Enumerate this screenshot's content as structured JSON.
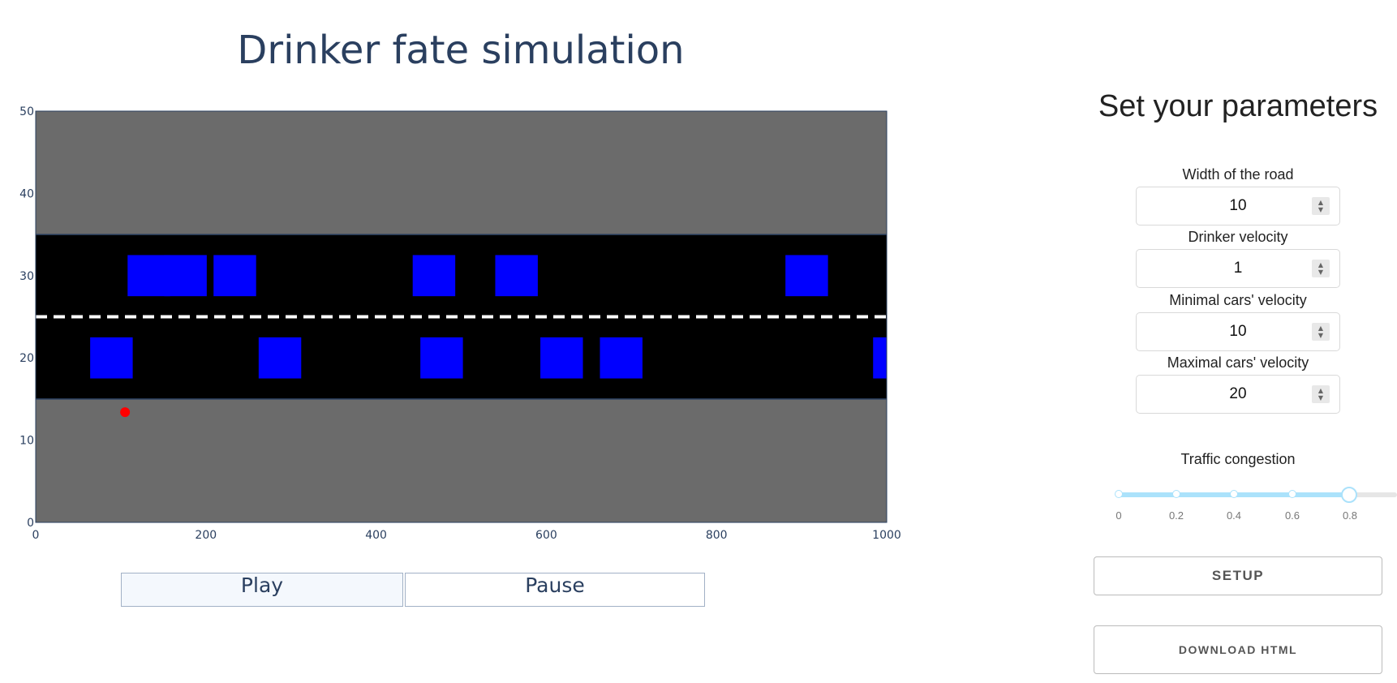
{
  "simulation": {
    "title": "Drinker fate simulation",
    "controls": {
      "play_label": "Play",
      "pause_label": "Pause"
    }
  },
  "colors": {
    "grass": "#6b6b6b",
    "road": "#000000",
    "car": "#0000ff",
    "drinker": "#ff0000",
    "lane_marking": "#ffffff",
    "axis_text": "#2a3f5f"
  },
  "chart_data": {
    "type": "scatter",
    "xlim": [
      0,
      1000
    ],
    "ylim": [
      0,
      50
    ],
    "x_ticks": [
      0,
      200,
      400,
      600,
      800,
      1000
    ],
    "y_ticks": [
      0,
      10,
      20,
      30,
      40,
      50
    ],
    "road": {
      "y_bottom": 15,
      "y_top": 35,
      "center_line_y": 25
    },
    "car_size": {
      "width": 50,
      "height": 5
    },
    "cars": [
      {
        "x": 133,
        "y": 30
      },
      {
        "x": 176,
        "y": 30
      },
      {
        "x": 234,
        "y": 30
      },
      {
        "x": 468,
        "y": 30
      },
      {
        "x": 565,
        "y": 30
      },
      {
        "x": 906,
        "y": 30
      },
      {
        "x": 89,
        "y": 20
      },
      {
        "x": 287,
        "y": 20
      },
      {
        "x": 477,
        "y": 20
      },
      {
        "x": 618,
        "y": 20
      },
      {
        "x": 688,
        "y": 20
      },
      {
        "x": 1009,
        "y": 20
      }
    ],
    "drinker": {
      "x": 105,
      "y": 13.4
    }
  },
  "parameters": {
    "title": "Set your parameters",
    "fields": [
      {
        "label": "Width of the road",
        "value": "10"
      },
      {
        "label": "Drinker velocity",
        "value": "1"
      },
      {
        "label": "Minimal cars' velocity",
        "value": "10"
      },
      {
        "label": "Maximal cars' velocity",
        "value": "20"
      }
    ],
    "congestion": {
      "label": "Traffic congestion",
      "marks": [
        "0",
        "0.2",
        "0.4",
        "0.6",
        "0.8"
      ],
      "value": 0.8
    },
    "setup_label": "SETUP",
    "download_label": "DOWNLOAD HTML"
  }
}
